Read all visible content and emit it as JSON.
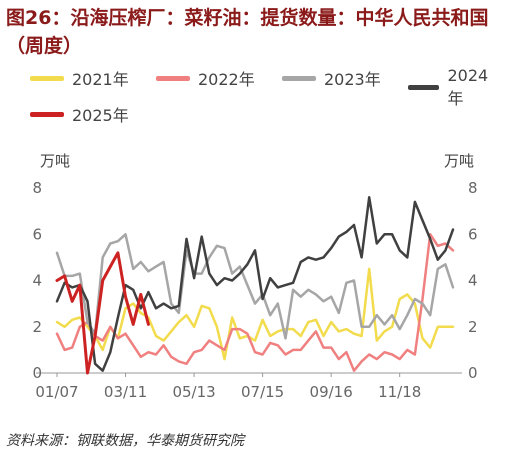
{
  "title": "图26：沿海压榨厂：菜籽油：提货数量：中华人民共和国（周度）",
  "unit_left": "万吨",
  "unit_right": "万吨",
  "source": "资料来源：钢联数据，华泰期货研究院",
  "chart_data": {
    "type": "line",
    "title": "图26：沿海压榨厂：菜籽油：提货数量：中华人民共和国（周度）",
    "xlabel": "",
    "ylabel": "万吨",
    "y2label": "万吨",
    "ylim": [
      0,
      8
    ],
    "yticks": [
      0,
      2,
      4,
      6,
      8
    ],
    "x_ticks": [
      "01/07",
      "03/11",
      "05/13",
      "07/15",
      "09/16",
      "11/18"
    ],
    "x_tick_weeks": [
      1,
      10,
      19,
      28,
      37,
      46
    ],
    "week_range": [
      1,
      53
    ],
    "legend_position": "top",
    "grid": false,
    "series": [
      {
        "name": "2021年",
        "color": "#f2dc4d",
        "values": [
          2.2,
          2.0,
          2.3,
          2.4,
          2.0,
          1.6,
          1.0,
          2.0,
          1.5,
          2.8,
          3.0,
          2.6,
          2.4,
          1.6,
          1.4,
          1.8,
          2.2,
          2.5,
          2.0,
          2.9,
          2.8,
          2.0,
          0.6,
          2.4,
          1.5,
          1.6,
          1.4,
          2.3,
          1.6,
          1.8,
          1.9,
          1.9,
          1.6,
          2.2,
          2.3,
          1.6,
          2.2,
          1.8,
          1.9,
          1.7,
          1.6,
          4.5,
          1.4,
          1.8,
          2.0,
          3.2,
          3.4,
          3.0,
          1.5,
          1.1,
          2.0,
          2.0,
          2.0
        ]
      },
      {
        "name": "2022年",
        "color": "#f08080",
        "values": [
          1.7,
          1.0,
          1.1,
          2.0,
          2.2,
          1.6,
          1.4,
          2.0,
          1.5,
          1.7,
          1.2,
          0.7,
          0.9,
          0.8,
          1.2,
          0.7,
          0.5,
          0.4,
          0.9,
          1.0,
          1.4,
          1.2,
          1.0,
          1.9,
          1.9,
          1.7,
          0.9,
          0.8,
          1.3,
          1.2,
          0.8,
          1.0,
          1.0,
          1.4,
          1.8,
          1.1,
          1.1,
          0.6,
          0.9,
          0.1,
          0.5,
          0.8,
          0.6,
          0.9,
          0.8,
          0.6,
          1.0,
          0.8,
          3.2,
          6.0,
          5.5,
          5.6,
          5.3
        ]
      },
      {
        "name": "2023年",
        "color": "#a6a6a6",
        "values": [
          5.2,
          4.2,
          4.2,
          4.3,
          2.2,
          1.7,
          5.0,
          5.6,
          5.7,
          6.0,
          4.5,
          4.8,
          4.4,
          4.6,
          4.8,
          3.0,
          2.6,
          5.3,
          4.3,
          4.3,
          5.0,
          5.5,
          5.4,
          4.3,
          4.6,
          3.8,
          3.0,
          3.4,
          2.5,
          3.0,
          1.5,
          3.6,
          3.3,
          3.6,
          3.4,
          3.1,
          3.3,
          2.6,
          3.9,
          4.0,
          2.0,
          2.0,
          2.5,
          2.1,
          2.5,
          1.9,
          2.5,
          3.2,
          3.0,
          2.5,
          4.5,
          4.7,
          3.7
        ]
      },
      {
        "name": "2024年",
        "color": "#404040",
        "values": [
          3.1,
          3.9,
          3.7,
          3.8,
          3.1,
          0.4,
          0.1,
          0.9,
          2.4,
          3.8,
          3.6,
          2.8,
          3.5,
          2.8,
          3.0,
          2.8,
          2.9,
          5.8,
          4.1,
          5.9,
          4.3,
          3.8,
          4.1,
          4.0,
          4.3,
          4.7,
          5.3,
          3.2,
          4.1,
          3.7,
          3.8,
          3.9,
          4.8,
          5.0,
          4.9,
          5.0,
          5.4,
          5.9,
          6.1,
          6.4,
          5.0,
          7.6,
          5.6,
          6.0,
          6.0,
          5.3,
          5.0,
          7.4,
          6.6,
          5.8,
          4.9,
          5.3,
          6.2
        ]
      },
      {
        "name": "2025年",
        "color": "#cc2222",
        "values": [
          4.0,
          4.2,
          3.1,
          3.8,
          0.0,
          1.6,
          4.0,
          4.6,
          5.2,
          3.3,
          2.1,
          3.4,
          2.1
        ]
      }
    ]
  }
}
